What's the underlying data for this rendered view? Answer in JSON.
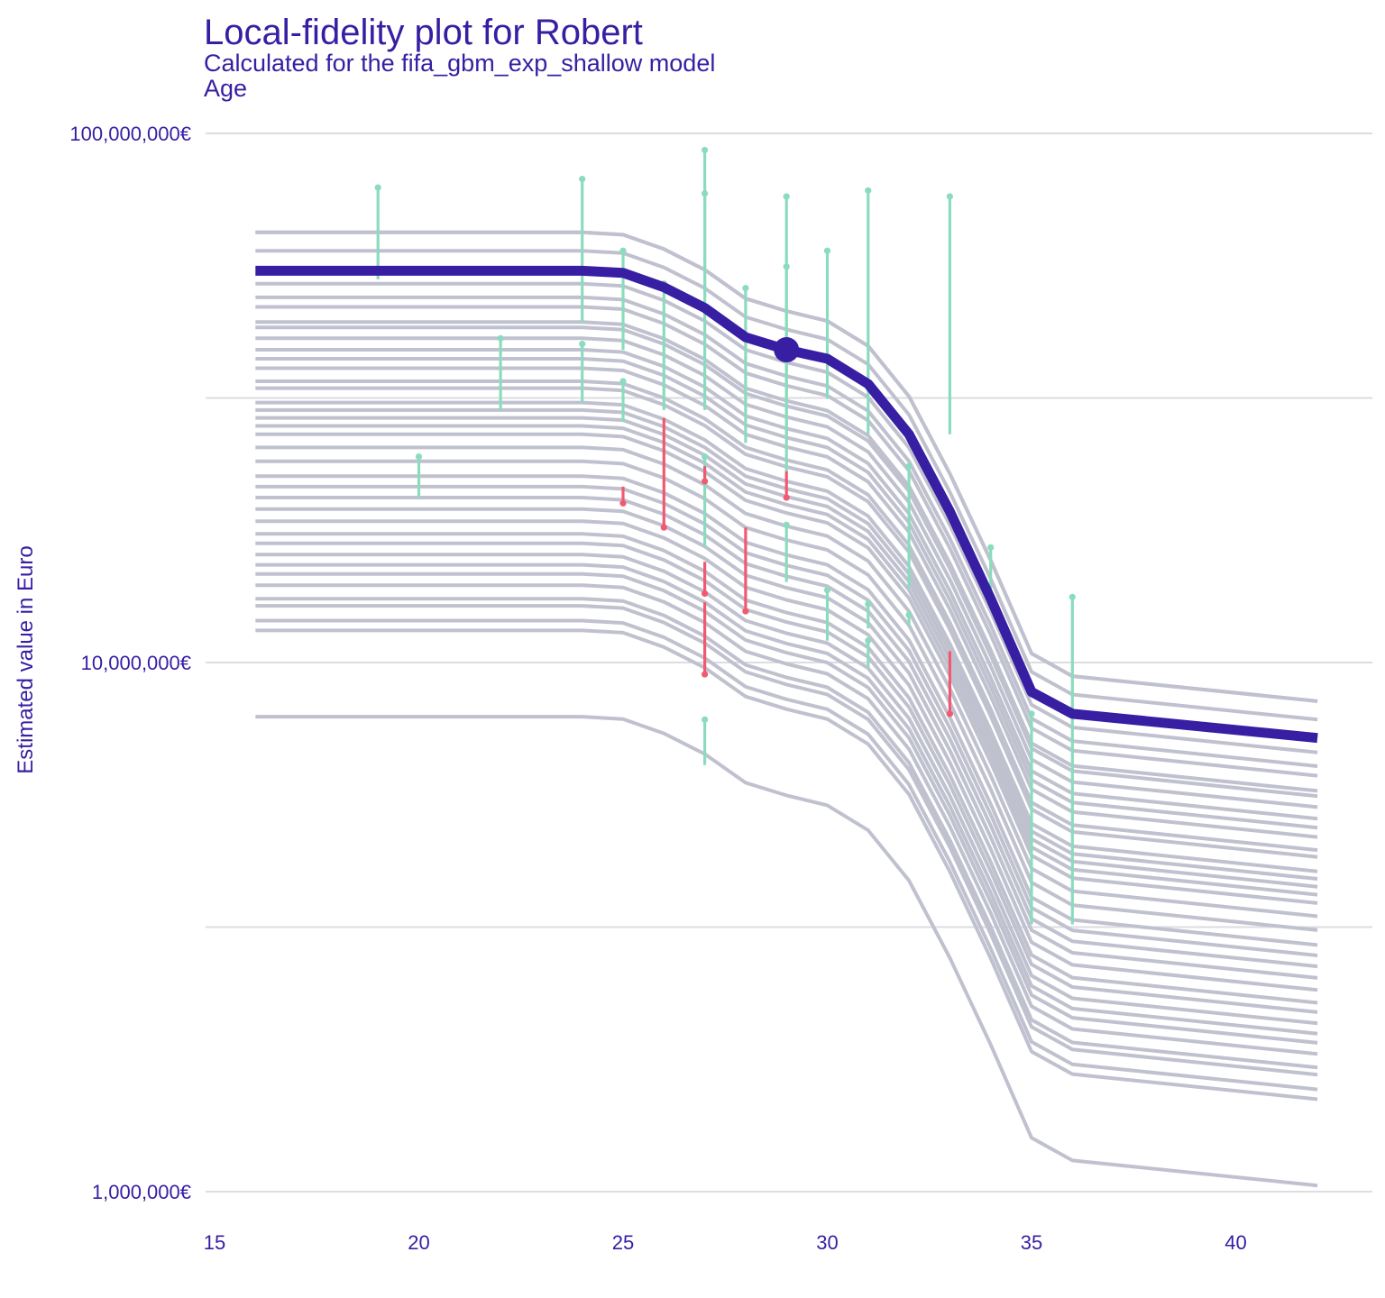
{
  "chart_data": {
    "type": "line",
    "title": "Local-fidelity plot for Robert",
    "subtitle": "Calculated for the fifa_gbm_exp_shallow model",
    "facet_label": "Age",
    "ylabel": "Estimated value in Euro",
    "xlabel": "",
    "y_scale": "log10",
    "xlim": [
      15,
      43
    ],
    "ylim": [
      1000000,
      100000000
    ],
    "x_ticks": [
      15,
      20,
      25,
      30,
      35,
      40
    ],
    "x_tick_labels": [
      "15",
      "20",
      "25",
      "30",
      "35",
      "40"
    ],
    "y_ticks": [
      1000000,
      10000000,
      100000000
    ],
    "y_tick_labels": [
      "1,000,000€",
      "10,000,000€",
      "100,000,000€"
    ],
    "grid": true,
    "x": [
      16,
      24,
      25,
      26,
      27,
      28,
      29,
      30,
      31,
      32,
      33,
      34,
      35,
      36,
      42
    ],
    "profile_shape": [
      1,
      1,
      0.99,
      0.93,
      0.85,
      0.75,
      0.71,
      0.68,
      0.61,
      0.49,
      0.35,
      0.24,
      0.16,
      0.145,
      0.13
    ],
    "neighbor_levels": [
      65000000,
      65000000,
      60000000,
      52000000,
      49000000,
      47000000,
      44000000,
      43000000,
      41000000,
      39000000,
      37500000,
      36000000,
      34000000,
      33000000,
      31000000,
      30000000,
      29000000,
      28000000,
      27000000,
      25500000,
      24000000,
      22500000,
      21500000,
      20500000,
      19500000,
      18500000,
      17500000,
      16800000,
      16000000,
      15300000,
      14700000,
      14000000,
      13200000,
      12800000,
      12000000,
      11500000,
      7900000
    ],
    "observation_series": {
      "name": "Robert",
      "values": [
        55000000,
        55000000,
        54500000,
        51200000,
        46800000,
        41200000,
        39000000,
        37500000,
        33600000,
        27000000,
        19300000,
        13200000,
        8800000,
        8000000,
        7200000
      ]
    },
    "observation_point": {
      "x": 29,
      "y": 39000000
    },
    "residual_colors": {
      "positive": "#8bdcbe",
      "negative": "#f05a71"
    },
    "residuals": [
      {
        "x": 19,
        "y0": 53000000,
        "y1": 79000000,
        "sign": "positive"
      },
      {
        "x": 20,
        "y0": 20500000,
        "y1": 24500000,
        "sign": "positive"
      },
      {
        "x": 22,
        "y0": 30000000,
        "y1": 41000000,
        "sign": "positive"
      },
      {
        "x": 24,
        "y0": 44000000,
        "y1": 82000000,
        "sign": "positive"
      },
      {
        "x": 24,
        "y0": 31000000,
        "y1": 40000000,
        "sign": "positive"
      },
      {
        "x": 25,
        "y0": 39000000,
        "y1": 60000000,
        "sign": "positive"
      },
      {
        "x": 25,
        "y0": 28500000,
        "y1": 34000000,
        "sign": "positive"
      },
      {
        "x": 25,
        "y0": 21500000,
        "y1": 20000000,
        "sign": "negative"
      },
      {
        "x": 26,
        "y0": 30000000,
        "y1": 52000000,
        "sign": "positive"
      },
      {
        "x": 26,
        "y0": 29000000,
        "y1": 18000000,
        "sign": "negative"
      },
      {
        "x": 27,
        "y0": 49000000,
        "y1": 93000000,
        "sign": "positive"
      },
      {
        "x": 27,
        "y0": 30000000,
        "y1": 77000000,
        "sign": "positive"
      },
      {
        "x": 27,
        "y0": 21500000,
        "y1": 24500000,
        "sign": "positive"
      },
      {
        "x": 27,
        "y0": 16500000,
        "y1": 22000000,
        "sign": "positive"
      },
      {
        "x": 27,
        "y0": 23500000,
        "y1": 22000000,
        "sign": "negative"
      },
      {
        "x": 27,
        "y0": 15500000,
        "y1": 13500000,
        "sign": "negative"
      },
      {
        "x": 27,
        "y0": 13000000,
        "y1": 9500000,
        "sign": "negative"
      },
      {
        "x": 27,
        "y0": 6400000,
        "y1": 7800000,
        "sign": "positive"
      },
      {
        "x": 28,
        "y0": 26000000,
        "y1": 51000000,
        "sign": "positive"
      },
      {
        "x": 28,
        "y0": 18000000,
        "y1": 12500000,
        "sign": "negative"
      },
      {
        "x": 29,
        "y0": 27000000,
        "y1": 76000000,
        "sign": "positive"
      },
      {
        "x": 29,
        "y0": 23000000,
        "y1": 56000000,
        "sign": "positive"
      },
      {
        "x": 29,
        "y0": 23000000,
        "y1": 20500000,
        "sign": "negative"
      },
      {
        "x": 29,
        "y0": 14200000,
        "y1": 18200000,
        "sign": "positive"
      },
      {
        "x": 30,
        "y0": 31500000,
        "y1": 60000000,
        "sign": "positive"
      },
      {
        "x": 30,
        "y0": 11000000,
        "y1": 13700000,
        "sign": "positive"
      },
      {
        "x": 31,
        "y0": 27000000,
        "y1": 78000000,
        "sign": "positive"
      },
      {
        "x": 31,
        "y0": 11600000,
        "y1": 12900000,
        "sign": "positive"
      },
      {
        "x": 31,
        "y0": 9800000,
        "y1": 11000000,
        "sign": "positive"
      },
      {
        "x": 32,
        "y0": 13800000,
        "y1": 23500000,
        "sign": "positive"
      },
      {
        "x": 32,
        "y0": 11700000,
        "y1": 12300000,
        "sign": "positive"
      },
      {
        "x": 33,
        "y0": 27000000,
        "y1": 76000000,
        "sign": "positive"
      },
      {
        "x": 33,
        "y0": 10500000,
        "y1": 8000000,
        "sign": "negative"
      },
      {
        "x": 34,
        "y0": 13000000,
        "y1": 16500000,
        "sign": "positive"
      },
      {
        "x": 35,
        "y0": 3200000,
        "y1": 8000000,
        "sign": "positive"
      },
      {
        "x": 36,
        "y0": 3200000,
        "y1": 13300000,
        "sign": "positive"
      }
    ]
  }
}
